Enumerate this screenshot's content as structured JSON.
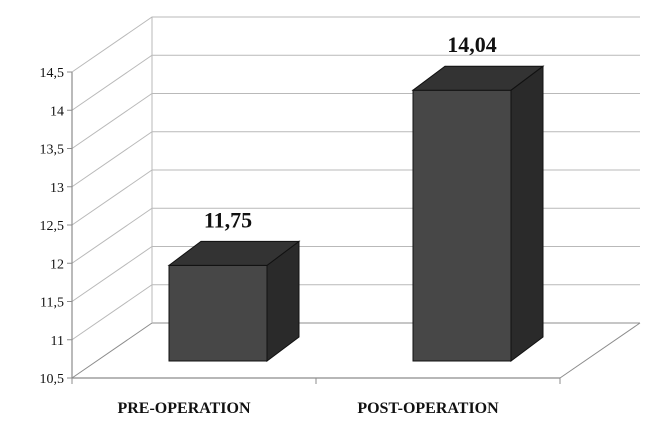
{
  "chart_data": {
    "type": "bar",
    "style": "3d-column",
    "categories": [
      "PRE-OPERATION",
      "POST-OPERATION"
    ],
    "values": [
      11.75,
      14.04
    ],
    "value_labels": [
      "11,75",
      "14,04"
    ],
    "title": "",
    "xlabel": "",
    "ylabel": "",
    "ylim": [
      10.5,
      14.5
    ],
    "y_ticks": [
      "10,5",
      "11",
      "11,5",
      "12",
      "12,5",
      "13",
      "13,5",
      "14",
      "14,5"
    ],
    "y_tick_values": [
      10.5,
      11,
      11.5,
      12,
      12.5,
      13,
      13.5,
      14,
      14.5
    ],
    "grid": true,
    "legend": "none",
    "colors": {
      "bar_front": "#474747",
      "bar_side": "#2a2a2a",
      "bar_top": "#333333",
      "bar_stroke": "#111111",
      "grid": "#b9b9b9",
      "axis": "#8c8c8c",
      "text": "#111111"
    }
  }
}
